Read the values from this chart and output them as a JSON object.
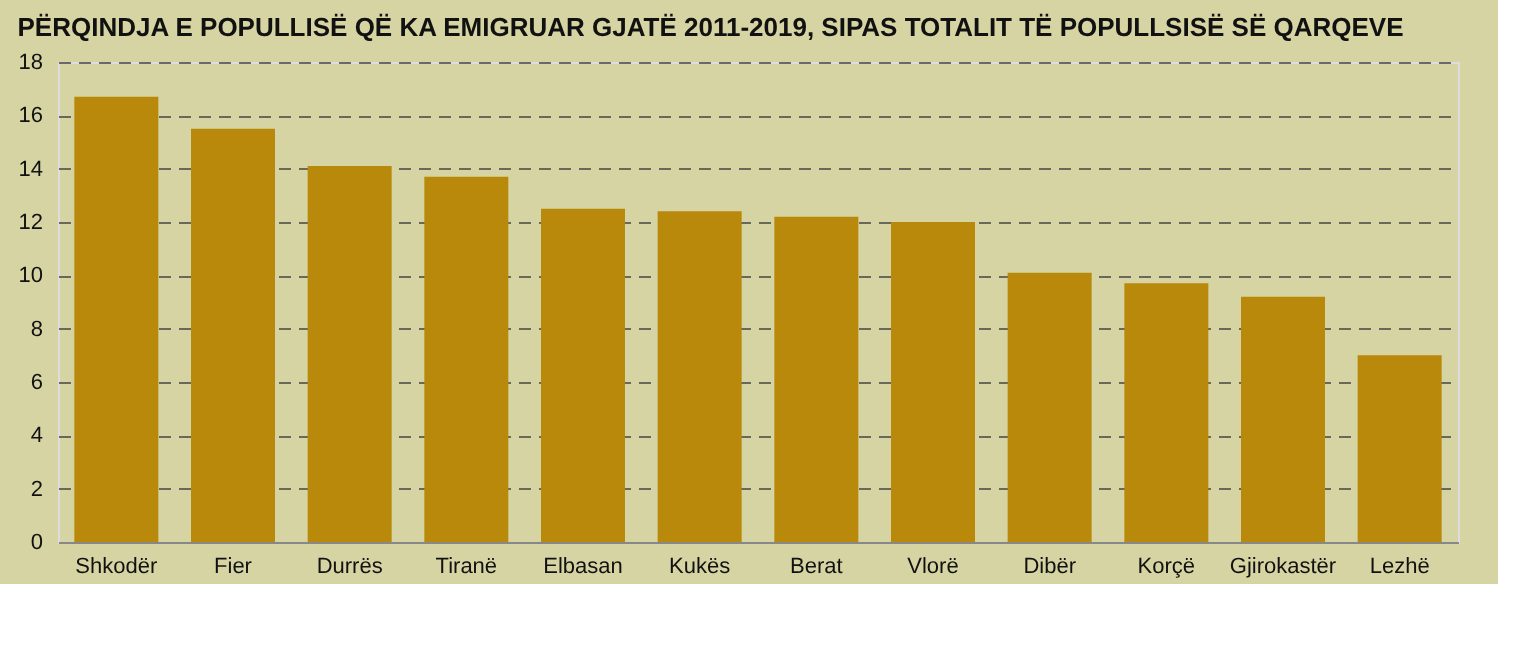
{
  "chart_data": {
    "type": "bar",
    "title": "PËRQINDJA E POPULLISË QË KA EMIGRUAR GJATË 2011-2019, SIPAS TOTALIT TË POPULLSISË SË QARQEVE",
    "categories": [
      "Shkodër",
      "Fier",
      "Durrës",
      "Tiranë",
      "Elbasan",
      "Kukës",
      "Berat",
      "Vlorë",
      "Dibër",
      "Korçë",
      "Gjirokastër",
      "Lezhë"
    ],
    "values": [
      16.7,
      15.5,
      14.1,
      13.7,
      12.5,
      12.4,
      12.2,
      12.0,
      10.1,
      9.7,
      9.2,
      7.0
    ],
    "color": "#b8890a",
    "ylim": [
      0,
      18
    ],
    "yticks": [
      0,
      2,
      4,
      6,
      8,
      10,
      12,
      14,
      16,
      18
    ],
    "grid": "y",
    "line_style": "dashed"
  }
}
